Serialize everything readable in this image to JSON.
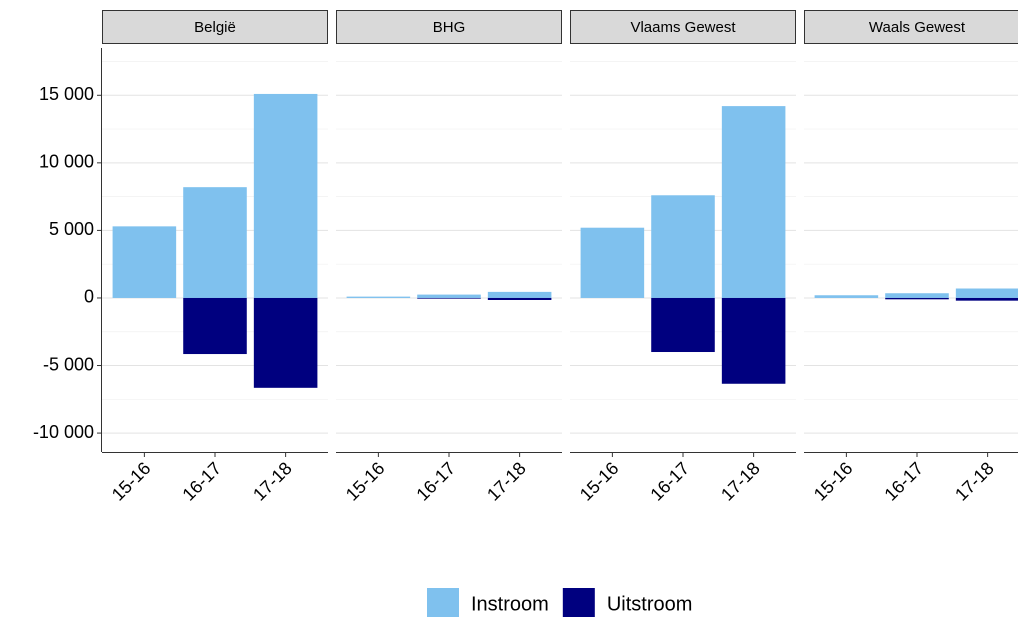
{
  "chart_data": {
    "type": "bar",
    "categories": [
      "15-16",
      "16-17",
      "17-18"
    ],
    "series": [
      {
        "name": "Instroom",
        "color": "#7fc1ee"
      },
      {
        "name": "Uitstroom",
        "color": "#00007f"
      }
    ],
    "facets": [
      {
        "title": "België",
        "series": [
          {
            "values": [
              5300,
              8200,
              15100
            ]
          },
          {
            "values": [
              null,
              -4150,
              -6650
            ]
          }
        ]
      },
      {
        "title": "BHG",
        "series": [
          {
            "values": [
              100,
              250,
              450
            ]
          },
          {
            "values": [
              null,
              -50,
              -150
            ]
          }
        ]
      },
      {
        "title": "Vlaams Gewest",
        "series": [
          {
            "values": [
              5200,
              7600,
              14200
            ]
          },
          {
            "values": [
              null,
              -4000,
              -6350
            ]
          }
        ]
      },
      {
        "title": "Waals Gewest",
        "series": [
          {
            "values": [
              200,
              350,
              700
            ]
          },
          {
            "values": [
              null,
              -100,
              -200
            ]
          }
        ]
      }
    ],
    "ylim": [
      -11400,
      18500
    ],
    "yticks": [
      {
        "value": -10000,
        "label": "-10 000"
      },
      {
        "value": -5000,
        "label": "-5 000"
      },
      0,
      {
        "value": 5000,
        "label": "5 000"
      },
      {
        "value": 10000,
        "label": "10 000"
      },
      {
        "value": 15000,
        "label": "15 000"
      }
    ],
    "minor_yticks": [
      -7500,
      -2500,
      2500,
      7500,
      12500,
      17500
    ],
    "grid": true
  }
}
